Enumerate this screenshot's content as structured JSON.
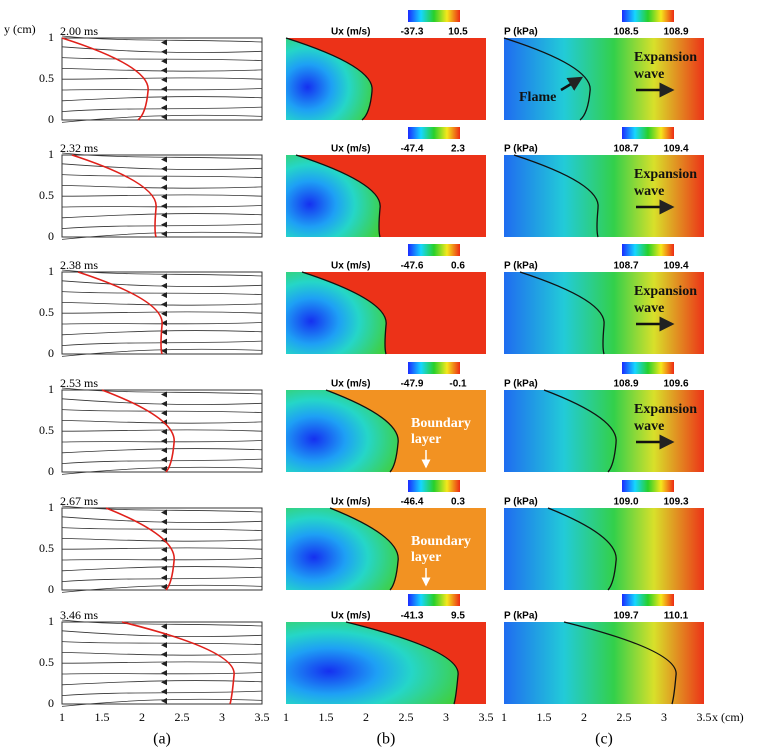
{
  "axis": {
    "y_label": "y (cm)",
    "x_label": "x (cm)",
    "y_ticks": [
      "0",
      "0.5",
      "1"
    ],
    "x_ticks": [
      "1",
      "1.5",
      "2",
      "2.5",
      "3",
      "3.5"
    ]
  },
  "column_labels": [
    "(a)",
    "(b)",
    "(c)"
  ],
  "rows": [
    {
      "time": "2.00 ms",
      "ux": {
        "title": "Ux (m/s)",
        "min": "-37.3",
        "max": "10.5"
      },
      "p": {
        "title": "P (kPa)",
        "min": "108.5",
        "max": "108.9"
      },
      "ux_notes": [],
      "p_notes": [
        [
          "Flame"
        ],
        [
          "Expansion",
          "wave"
        ]
      ]
    },
    {
      "time": "2.32 ms",
      "ux": {
        "title": "Ux (m/s)",
        "min": "-47.4",
        "max": "2.3"
      },
      "p": {
        "title": "P (kPa)",
        "min": "108.7",
        "max": "109.4"
      },
      "ux_notes": [],
      "p_notes": [
        [
          "Expansion",
          "wave"
        ]
      ]
    },
    {
      "time": "2.38 ms",
      "ux": {
        "title": "Ux (m/s)",
        "min": "-47.6",
        "max": "0.6"
      },
      "p": {
        "title": "P (kPa)",
        "min": "108.7",
        "max": "109.4"
      },
      "ux_notes": [],
      "p_notes": [
        [
          "Expansion",
          "wave"
        ]
      ]
    },
    {
      "time": "2.53 ms",
      "ux": {
        "title": "Ux (m/s)",
        "min": "-47.9",
        "max": "-0.1"
      },
      "p": {
        "title": "P (kPa)",
        "min": "108.9",
        "max": "109.6"
      },
      "ux_notes": [
        [
          "Boundary",
          "layer"
        ]
      ],
      "p_notes": [
        [
          "Expansion",
          "wave"
        ]
      ]
    },
    {
      "time": "2.67 ms",
      "ux": {
        "title": "Ux (m/s)",
        "min": "-46.4",
        "max": "0.3"
      },
      "p": {
        "title": "P (kPa)",
        "min": "109.0",
        "max": "109.3"
      },
      "ux_notes": [
        [
          "Boundary",
          "layer"
        ]
      ],
      "p_notes": []
    },
    {
      "time": "3.46 ms",
      "ux": {
        "title": "Ux (m/s)",
        "min": "-41.3",
        "max": "9.5"
      },
      "p": {
        "title": "P (kPa)",
        "min": "109.7",
        "max": "110.1"
      },
      "ux_notes": [],
      "p_notes": []
    }
  ]
}
